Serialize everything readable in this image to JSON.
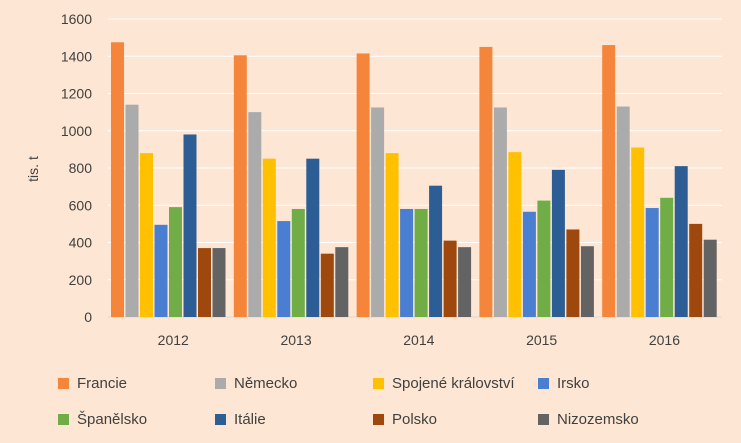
{
  "chart_data": {
    "type": "bar",
    "title": "",
    "xlabel": "",
    "ylabel": "tis. t",
    "ylim": [
      0,
      1600
    ],
    "yticks": [
      "0",
      "200",
      "400",
      "600",
      "800",
      "1000",
      "1200",
      "1400",
      "1600"
    ],
    "grid": true,
    "legend_position": "bottom",
    "categories": [
      "2012",
      "2013",
      "2014",
      "2015",
      "2016"
    ],
    "series": [
      {
        "name": "Francie",
        "color": "#f4853a",
        "values": [
          1475,
          1405,
          1415,
          1450,
          1460
        ]
      },
      {
        "name": "Německo",
        "color": "#ababab",
        "values": [
          1140,
          1100,
          1125,
          1125,
          1130
        ]
      },
      {
        "name": "Spojené království",
        "color": "#ffc000",
        "values": [
          880,
          850,
          880,
          885,
          910
        ]
      },
      {
        "name": "Irsko",
        "color": "#4a7ed1",
        "values": [
          495,
          515,
          580,
          565,
          585
        ]
      },
      {
        "name": "Španělsko",
        "color": "#70ad47",
        "values": [
          590,
          580,
          580,
          625,
          640
        ]
      },
      {
        "name": "Itálie",
        "color": "#2c5d94",
        "values": [
          980,
          850,
          705,
          790,
          810
        ]
      },
      {
        "name": "Polsko",
        "color": "#9e480e",
        "values": [
          370,
          340,
          410,
          470,
          500
        ]
      },
      {
        "name": "Nizozemsko",
        "color": "#636363",
        "values": [
          370,
          375,
          375,
          380,
          415
        ]
      }
    ]
  }
}
